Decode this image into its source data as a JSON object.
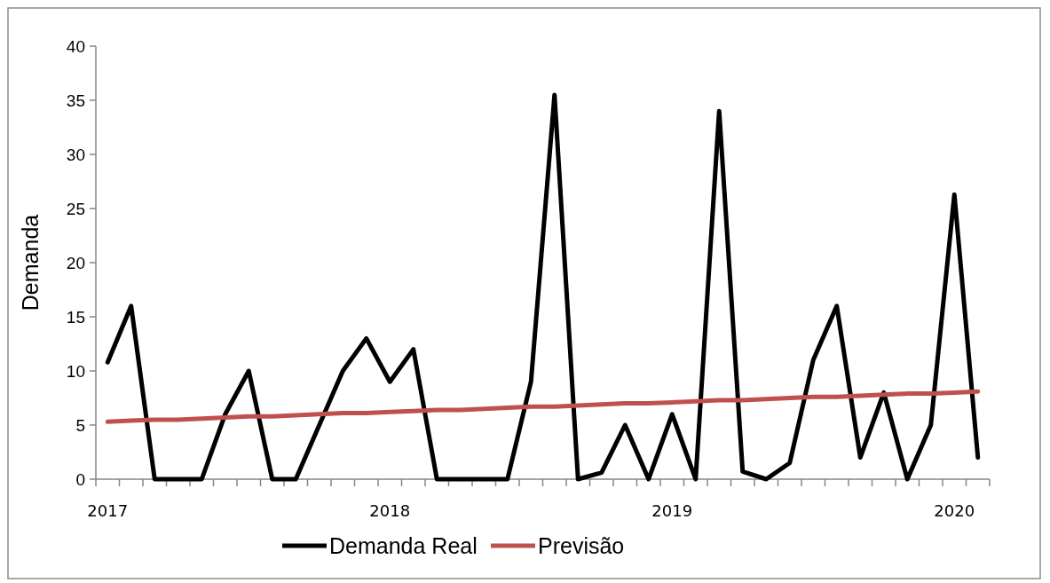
{
  "chart_data": {
    "type": "line",
    "ylabel": "Demanda",
    "categories": [
      "2017",
      null,
      null,
      null,
      null,
      null,
      null,
      null,
      null,
      null,
      null,
      null,
      "2018",
      null,
      null,
      null,
      null,
      null,
      null,
      null,
      null,
      null,
      null,
      null,
      "2019",
      null,
      null,
      null,
      null,
      null,
      null,
      null,
      null,
      null,
      null,
      null,
      "2020",
      null
    ],
    "series": [
      {
        "name": "Demanda Real",
        "color": "#000000",
        "values": [
          10.8,
          16,
          0,
          0,
          0,
          6,
          10,
          0,
          0,
          5,
          10,
          13,
          9,
          12,
          0,
          0,
          0,
          0,
          9,
          35.5,
          0,
          0.6,
          5,
          0,
          6,
          0,
          34,
          0.7,
          0,
          1.5,
          11,
          16,
          2,
          8,
          0,
          5,
          26.3,
          2
        ]
      },
      {
        "name": "Previsão",
        "color": "#c0504d",
        "values": [
          5.3,
          5.4,
          5.5,
          5.5,
          5.6,
          5.7,
          5.8,
          5.8,
          5.9,
          6.0,
          6.1,
          6.1,
          6.2,
          6.3,
          6.4,
          6.4,
          6.5,
          6.6,
          6.7,
          6.7,
          6.8,
          6.9,
          7.0,
          7.0,
          7.1,
          7.2,
          7.3,
          7.3,
          7.4,
          7.5,
          7.6,
          7.6,
          7.7,
          7.8,
          7.9,
          7.9,
          8.0,
          8.1
        ]
      }
    ],
    "ylim": [
      0,
      40
    ],
    "yticks": [
      0,
      5,
      10,
      15,
      20,
      25,
      30,
      35,
      40
    ],
    "grid": false,
    "legend": "bottom",
    "marker": "none",
    "line_style": "solid"
  }
}
